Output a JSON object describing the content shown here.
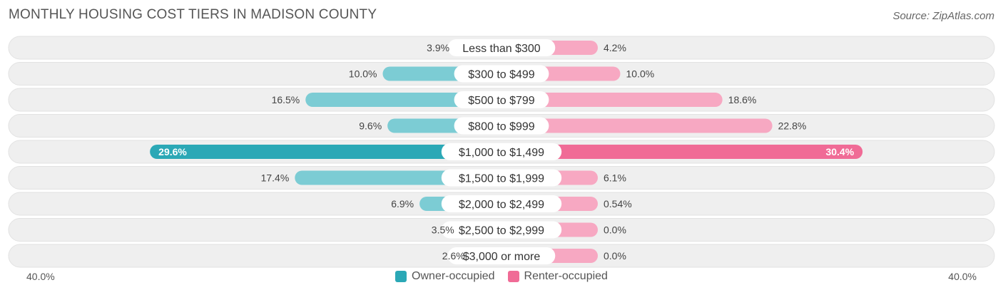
{
  "title": "MONTHLY HOUSING COST TIERS IN MADISON COUNTY",
  "source": "Source: ZipAtlas.com",
  "colors": {
    "owner": "#2ba8b6",
    "owner_light": "#7cccd4",
    "renter": "#f06b96",
    "renter_light": "#f7a8c2",
    "row_bg": "#efefef"
  },
  "chart_data": {
    "type": "bar",
    "orientation": "horizontal-diverging",
    "categories": [
      "Less than $300",
      "$300 to $499",
      "$500 to $799",
      "$800 to $999",
      "$1,000 to $1,499",
      "$1,500 to $1,999",
      "$2,000 to $2,499",
      "$2,500 to $2,999",
      "$3,000 or more"
    ],
    "series": [
      {
        "name": "Owner-occupied",
        "values": [
          3.9,
          10.0,
          16.5,
          9.6,
          29.6,
          17.4,
          6.9,
          3.5,
          2.6
        ],
        "labels": [
          "3.9%",
          "10.0%",
          "16.5%",
          "9.6%",
          "29.6%",
          "17.4%",
          "6.9%",
          "3.5%",
          "2.6%"
        ]
      },
      {
        "name": "Renter-occupied",
        "values": [
          4.2,
          10.0,
          18.6,
          22.8,
          30.4,
          6.1,
          0.54,
          0.0,
          0.0
        ],
        "labels": [
          "4.2%",
          "10.0%",
          "18.6%",
          "22.8%",
          "30.4%",
          "6.1%",
          "0.54%",
          "0.0%",
          "0.0%"
        ]
      }
    ],
    "xlim": [
      -40,
      40
    ],
    "axis_min_label": "40.0%",
    "axis_max_label": "40.0%",
    "highlight_index": 4,
    "legend_position": "bottom-center"
  }
}
